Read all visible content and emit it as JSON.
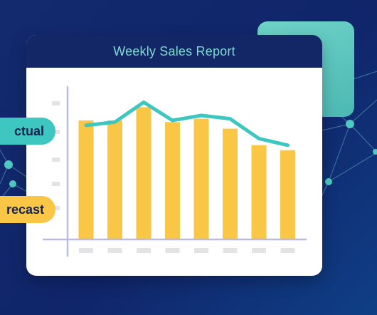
{
  "card": {
    "title": "Weekly Sales Report"
  },
  "legend": {
    "actual_label": "ctual",
    "forecast_label": "recast"
  },
  "colors": {
    "bar": "#f9c646",
    "line": "#3ec6c0",
    "axis": "#b9bce0",
    "placeholder": "#e3e3e6"
  },
  "chart_data": {
    "type": "bar",
    "title": "Weekly Sales Report",
    "categories": [
      "",
      "",
      "",
      "",
      "",
      "",
      "",
      ""
    ],
    "ylim": [
      0,
      100
    ],
    "grid": false,
    "series": [
      {
        "type": "bar",
        "values": [
          72,
          72,
          80,
          71,
          73,
          67,
          57,
          54
        ]
      },
      {
        "type": "line",
        "values": [
          69,
          71,
          83,
          72,
          75,
          73,
          61,
          57
        ]
      }
    ]
  }
}
